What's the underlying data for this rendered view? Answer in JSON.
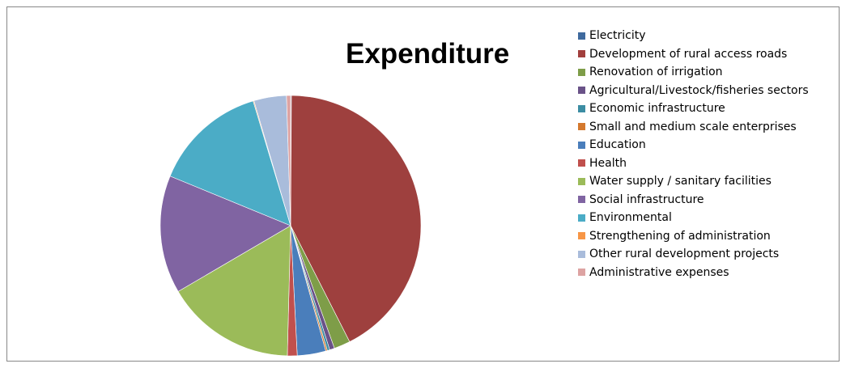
{
  "chart_data": {
    "type": "pie",
    "title": "Expenditure",
    "legend_position": "right",
    "slices": [
      {
        "label": "Electricity",
        "value": 0.1,
        "color": "#4F81BD"
      },
      {
        "label": "Development of rural access roads",
        "value": 42.0,
        "color": "#C0504D"
      },
      {
        "label": "Renovation of irrigation",
        "value": 2.0,
        "color": "#9BBB59"
      },
      {
        "label": "Agricultural/Livestock/fisheries sectors",
        "value": 0.6,
        "color": "#8064A2"
      },
      {
        "label": "Economic infrastructure",
        "value": 0.3,
        "color": "#4BACC6"
      },
      {
        "label": "Small and medium scale enterprises",
        "value": 0.2,
        "color": "#F79646"
      },
      {
        "label": "Education",
        "value": 3.5,
        "color": "#2C4D75"
      },
      {
        "label": "Health",
        "value": 1.2,
        "color": "#772C2A"
      },
      {
        "label": "Water supply / sanitary facilities",
        "value": 16.0,
        "color": "#5F7530"
      },
      {
        "label": "Social infrastructure",
        "value": 14.5,
        "color": "#4D3B62"
      },
      {
        "label": "Environmental",
        "value": 14.0,
        "color": "#276A7C"
      },
      {
        "label": "Strengthening of administration",
        "value": 0.1,
        "color": "#B65708"
      },
      {
        "label": "Other rural development projects",
        "value": 4.0,
        "color": "#729ACA"
      },
      {
        "label": "Administrative expenses",
        "value": 0.5,
        "color": "#CD7371"
      }
    ]
  },
  "colors": {
    "legend_swatches": [
      "#3F6A9E",
      "#A23F3D",
      "#7E9D48",
      "#6A5288",
      "#3C8DA3",
      "#D4792E",
      "#4A7EBB",
      "#C0504D",
      "#9BBB59",
      "#8064A2",
      "#4BACC6",
      "#F79646",
      "#A9BCDB",
      "#DDA3A2"
    ],
    "pie_slices": [
      "#3F6A9E",
      "#9E403E",
      "#7E9D48",
      "#6A5288",
      "#3C8DA3",
      "#D4792E",
      "#4A7EBB",
      "#C0504D",
      "#9BBB59",
      "#8064A2",
      "#4BACC6",
      "#F79646",
      "#A9BCDB",
      "#DDA3A2"
    ]
  }
}
